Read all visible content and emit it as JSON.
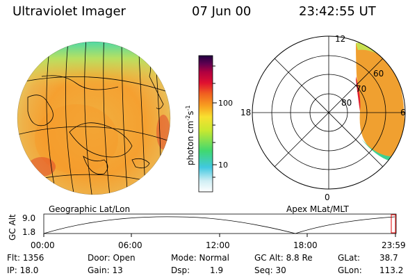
{
  "header": {
    "title": "Ultraviolet Imager",
    "date": "07 Jun 00",
    "time": "23:42:55 UT"
  },
  "colorbar": {
    "unit": "photon cm",
    "exp1": "-2",
    "mid": "s",
    "exp2": "-1",
    "tick_100": "100",
    "tick_10": "10"
  },
  "polar": {
    "label_top": "12",
    "label_left": "18",
    "label_right": "6",
    "label_bottom": "0",
    "lat_60": "60",
    "lat_70": "70",
    "lat_80": "80"
  },
  "maps": {
    "left_caption": "Geographic Lat/Lon",
    "right_caption": "Apex MLat/MLT"
  },
  "timeline": {
    "axis_label": "GC Alt",
    "y_top": "9.0",
    "y_bottom": "1.8",
    "ticks": [
      "00:00",
      "06:00",
      "12:00",
      "18:00",
      "23:59"
    ]
  },
  "info": {
    "flt": "Flt: 1356",
    "ip": "IP: 18.0",
    "door": "Door: Open",
    "gain": "Gain: 13",
    "mode": "Mode: Normal",
    "dsp_label": "Dsp:",
    "dsp_value": "1.9",
    "gcalt": "GC Alt: 8.8 Re",
    "seq": "Seq: 30",
    "glat_label": "GLat:",
    "glat_value": "38.7",
    "glon_label": "GLon:",
    "glon_value": "113.2"
  }
}
